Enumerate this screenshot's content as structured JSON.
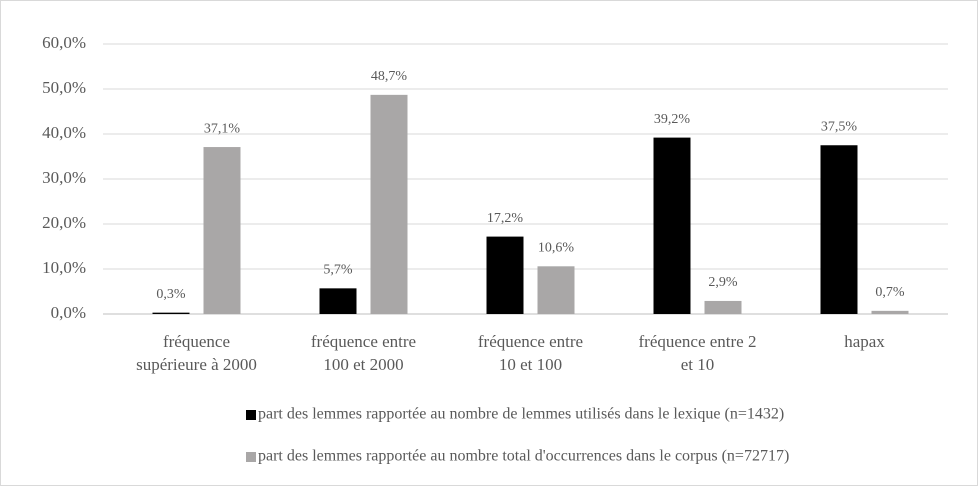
{
  "chart_data": {
    "type": "bar",
    "categories": [
      [
        "fréquence",
        "supérieure à 2000"
      ],
      [
        "fréquence entre",
        "100 et 2000"
      ],
      [
        "fréquence entre",
        "10 et 100"
      ],
      [
        "fréquence entre 2",
        "et 10"
      ],
      [
        "hapax"
      ]
    ],
    "series": [
      {
        "name": "part des lemmes rapportée au nombre de lemmes utilisés dans le lexique (n=1432)",
        "color": "#000000",
        "values": [
          0.3,
          5.7,
          17.2,
          39.2,
          37.5
        ],
        "value_labels": [
          "0,3%",
          "5,7%",
          "17,2%",
          "39,2%",
          "37,5%"
        ]
      },
      {
        "name": "part des lemmes rapportée au nombre total d'occurrences dans le corpus (n=72717)",
        "color": "#a9a7a7",
        "values": [
          37.1,
          48.7,
          10.6,
          2.9,
          0.7
        ],
        "value_labels": [
          "37,1%",
          "48,7%",
          "10,6%",
          "2,9%",
          "0,7%"
        ]
      }
    ],
    "ylim": [
      0,
      60
    ],
    "yticks": [
      {
        "value": 0,
        "label": "0,0%"
      },
      {
        "value": 10,
        "label": "10,0%"
      },
      {
        "value": 20,
        "label": "20,0%"
      },
      {
        "value": 30,
        "label": "30,0%"
      },
      {
        "value": 40,
        "label": "40,0%"
      },
      {
        "value": 50,
        "label": "50,0%"
      },
      {
        "value": 60,
        "label": "60,0%"
      }
    ],
    "grid": true,
    "legend": "bottom"
  }
}
